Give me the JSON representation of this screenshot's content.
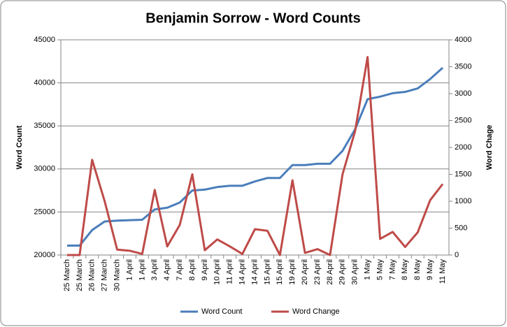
{
  "chart_data": {
    "type": "line",
    "title": "Benjamin Sorrow - Word Counts",
    "y_label": "Word Count",
    "y2_label": "Word Chage",
    "categories": [
      "25 March",
      "25 March",
      "26 March",
      "27 March",
      "30 March",
      "1 April",
      "1 April",
      "3 April",
      "4 April",
      "7 April",
      "8 April",
      "9 April",
      "10 April",
      "11 April",
      "14 April",
      "14 April",
      "15 April",
      "15 April",
      "19 April",
      "20 April",
      "23 April",
      "28 April",
      "29 April",
      "30 April",
      "1 May",
      "5 May",
      "7 May",
      "8 May",
      "8 May",
      "9 May",
      "11 May"
    ],
    "series": [
      {
        "name": "Word Count",
        "color": "#4a7ebb",
        "values": [
          21100,
          21100,
          22900,
          23900,
          24000,
          24050,
          24100,
          25300,
          25500,
          26100,
          27500,
          27600,
          27900,
          28050,
          28050,
          28550,
          28950,
          28950,
          30450,
          30450,
          30600,
          30600,
          32100,
          34600,
          38100,
          38400,
          38800,
          38950,
          39350,
          40450,
          41750
        ]
      },
      {
        "name": "Word Change",
        "color": "#be4b48",
        "axis": "y2",
        "values": [
          0,
          0,
          1770,
          1000,
          100,
          80,
          20,
          1210,
          160,
          560,
          1500,
          90,
          290,
          160,
          20,
          480,
          450,
          0,
          1390,
          40,
          110,
          0,
          1500,
          2300,
          3680,
          300,
          430,
          150,
          420,
          1020,
          1320
        ]
      }
    ],
    "ylim": [
      20000,
      45000
    ],
    "yticks": [
      20000,
      25000,
      30000,
      35000,
      40000,
      45000
    ],
    "y2lim": [
      0,
      4000
    ],
    "y2ticks": [
      0,
      500,
      1000,
      1500,
      2000,
      2500,
      3000,
      3500,
      4000
    ],
    "grid": true,
    "legend": "bottom"
  }
}
